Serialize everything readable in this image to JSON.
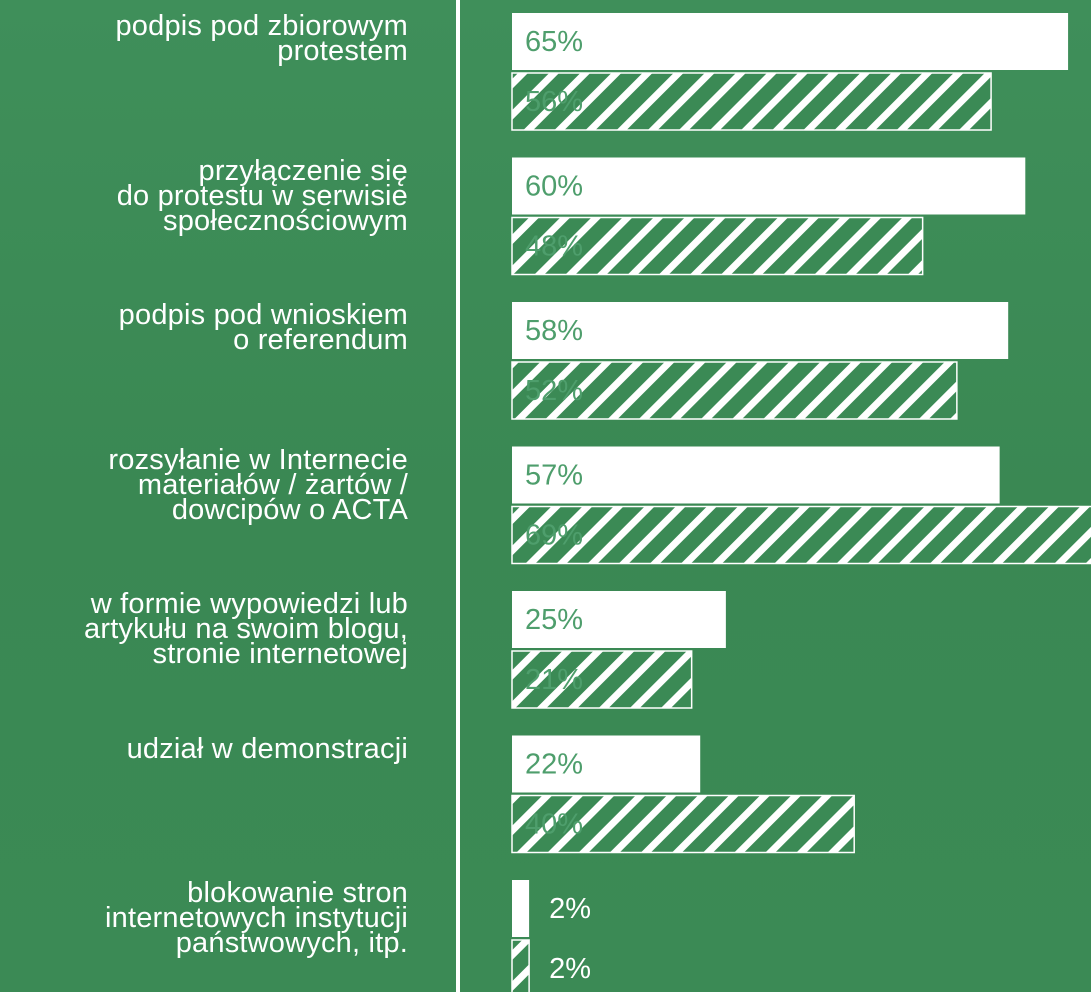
{
  "chart_data": {
    "type": "bar",
    "orientation": "horizontal",
    "categories": [
      "podpis pod zbiorowym\nprotestem",
      "przyłączenie się\ndo protestu w serwisie\nspołecznościowym",
      "podpis pod wnioskiem\no referendum",
      "rozsyłanie w Internecie\nmateriałów / żartów /\ndowcipów o ACTA",
      "w formie wypowiedzi lub\nartykułu na swoim blogu,\nstronie internetowej",
      "udział w demonstracji",
      "blokowanie stron\ninternetowych instytucji\npaństwowych, itp."
    ],
    "series": [
      {
        "color": "#ffffff",
        "hatch": false,
        "values": [
          65,
          60,
          58,
          57,
          25,
          22,
          2
        ],
        "value_labels": [
          "65%",
          "60%",
          "58%",
          "57%",
          "25%",
          "22%",
          "2%"
        ]
      },
      {
        "color": "#ffffff",
        "hatch": true,
        "values": [
          56,
          48,
          52,
          69,
          21,
          40,
          2
        ],
        "value_labels": [
          "56%",
          "48%",
          "52%",
          "69%",
          "21%",
          "40%",
          "2%"
        ]
      }
    ]
  }
}
